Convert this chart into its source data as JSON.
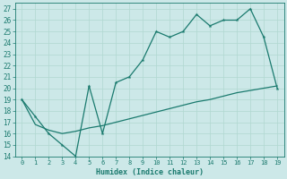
{
  "xlabel": "Humidex (Indice chaleur)",
  "x_values": [
    0,
    1,
    2,
    3,
    4,
    5,
    6,
    7,
    8,
    9,
    10,
    11,
    12,
    13,
    14,
    15,
    16,
    17,
    18,
    19
  ],
  "line1_y": [
    19,
    17.5,
    16,
    15,
    14,
    20.2,
    16,
    20.5,
    21,
    22.5,
    25,
    24.5,
    25,
    26.5,
    25.5,
    26,
    26,
    27,
    24.5,
    20
  ],
  "line2_y": [
    19,
    16.8,
    16.3,
    16.0,
    16.2,
    16.5,
    16.7,
    17.0,
    17.3,
    17.6,
    17.9,
    18.2,
    18.5,
    18.8,
    19.0,
    19.3,
    19.6,
    19.8,
    20.0,
    20.2
  ],
  "ylim": [
    14,
    27.5
  ],
  "xlim": [
    -0.5,
    19.5
  ],
  "yticks": [
    14,
    15,
    16,
    17,
    18,
    19,
    20,
    21,
    22,
    23,
    24,
    25,
    26,
    27
  ],
  "xticks": [
    0,
    1,
    2,
    3,
    4,
    5,
    6,
    7,
    8,
    9,
    10,
    11,
    12,
    13,
    14,
    15,
    16,
    17,
    18,
    19
  ],
  "line_color": "#1a7a6e",
  "bg_color": "#cce8e8",
  "grid_color": "#b0d8d0",
  "marker": "*",
  "marker_size": 3,
  "line_width": 0.9
}
